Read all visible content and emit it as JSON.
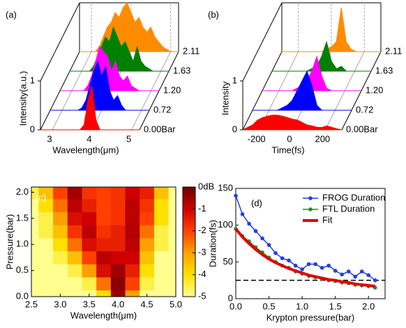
{
  "chart_data": [
    {
      "type": "waterfall",
      "label": "(a)",
      "xlabel": "Wavelength(μm)",
      "ylabel": "Intensity(a.u.)",
      "x": [
        3.0,
        3.1,
        3.2,
        3.3,
        3.4,
        3.5,
        3.6,
        3.7,
        3.8,
        3.9,
        4.0,
        4.1,
        4.2,
        4.3,
        4.4,
        4.5,
        4.6,
        4.7,
        4.8,
        4.9,
        5.0
      ],
      "xlim": [
        2.7,
        5.2
      ],
      "xticks": [
        3,
        4,
        5
      ],
      "zlim": [
        0,
        1
      ],
      "zticks": [
        0,
        1
      ],
      "series": [
        {
          "name": "0.00Bar",
          "color": "#ff0000",
          "values": [
            0,
            0,
            0,
            0,
            0,
            0,
            0,
            0,
            0.1,
            0.6,
            0.9,
            0.2,
            0,
            0,
            0,
            0,
            0,
            0,
            0,
            0,
            0
          ]
        },
        {
          "name": "0.72",
          "color": "#0000ff",
          "values": [
            0,
            0,
            0,
            0,
            0,
            0.05,
            0.2,
            0.5,
            0.8,
            1.0,
            0.7,
            0.9,
            0.4,
            0.2,
            0.3,
            0.1,
            0,
            0,
            0,
            0,
            0
          ]
        },
        {
          "name": "1.20",
          "color": "#ff00ff",
          "values": [
            0,
            0,
            0,
            0,
            0.1,
            0.3,
            0.6,
            0.9,
            0.8,
            0.7,
            0.4,
            0.6,
            0.3,
            0.2,
            0.3,
            0.1,
            0.05,
            0,
            0,
            0,
            0
          ]
        },
        {
          "name": "1.63",
          "color": "#008000",
          "values": [
            0,
            0,
            0,
            0.1,
            0.3,
            0.5,
            0.7,
            0.6,
            0.9,
            0.7,
            0.5,
            0.6,
            0.4,
            0.2,
            0.5,
            0.2,
            0.1,
            0.05,
            0,
            0,
            0
          ]
        },
        {
          "name": "2.11",
          "color": "#ff8c00",
          "values": [
            0,
            0,
            0.1,
            0.3,
            0.5,
            0.6,
            0.8,
            0.7,
            0.9,
            1.0,
            0.8,
            0.6,
            0.7,
            0.5,
            0.4,
            0.5,
            0.3,
            0.2,
            0.1,
            0.05,
            0
          ]
        }
      ]
    },
    {
      "type": "waterfall",
      "label": "(b)",
      "xlabel": "Time(fs)",
      "ylabel": "Intensity",
      "x": [
        -300,
        -270,
        -240,
        -210,
        -180,
        -150,
        -120,
        -90,
        -60,
        -30,
        0,
        30,
        60,
        90,
        120,
        150,
        180,
        210,
        240,
        270,
        300
      ],
      "xlim": [
        -300,
        300
      ],
      "xticks": [
        -200,
        0,
        200
      ],
      "zlim": [
        0,
        1
      ],
      "zticks": [
        0,
        1
      ],
      "series": [
        {
          "name": "0.00Bar",
          "color": "#ff0000",
          "values": [
            0,
            0.05,
            0.1,
            0.2,
            0.25,
            0.28,
            0.3,
            0.3,
            0.28,
            0.25,
            0.22,
            0.2,
            0.15,
            0.1,
            0.08,
            0.05,
            0.05,
            0.08,
            0.05,
            0.02,
            0
          ]
        },
        {
          "name": "0.72",
          "color": "#0000ff",
          "values": [
            0,
            0,
            0,
            0,
            0,
            0,
            0.05,
            0.1,
            0.2,
            0.4,
            0.6,
            0.8,
            0.5,
            0.1,
            0,
            0,
            0,
            0,
            0,
            0,
            0
          ]
        },
        {
          "name": "1.20",
          "color": "#ff00ff",
          "values": [
            0,
            0,
            0,
            0,
            0,
            0,
            0,
            0.05,
            0.1,
            0.2,
            0.4,
            0.7,
            0.3,
            0.05,
            0,
            0,
            0,
            0,
            0,
            0,
            0
          ]
        },
        {
          "name": "1.63",
          "color": "#008000",
          "values": [
            0,
            0,
            0,
            0,
            0,
            0,
            0,
            0,
            0.05,
            0.1,
            0.3,
            0.6,
            0.2,
            0.05,
            0.1,
            0,
            0,
            0,
            0,
            0,
            0
          ]
        },
        {
          "name": "2.11",
          "color": "#ff8c00",
          "values": [
            0,
            0,
            0,
            0,
            0,
            0,
            0,
            0,
            0,
            0.05,
            0.1,
            0.2,
            0.9,
            0.2,
            0.05,
            0,
            0,
            0,
            0,
            0,
            0
          ]
        }
      ]
    },
    {
      "type": "heatmap",
      "label": "(c)",
      "xlabel": "Wavelength(μm)",
      "ylabel": "Pressure(bar)",
      "x": [
        2.5,
        2.75,
        3.0,
        3.25,
        3.5,
        3.75,
        4.0,
        4.25,
        4.5,
        4.75,
        5.0
      ],
      "y": [
        0,
        0.25,
        0.5,
        0.75,
        1.0,
        1.25,
        1.5,
        1.75,
        2.0
      ],
      "z": [
        [
          -5,
          -5,
          -5,
          -5,
          -5,
          -4,
          -0.5,
          -3,
          -5,
          -5,
          -5
        ],
        [
          -5,
          -5,
          -5,
          -5,
          -4.5,
          -2.5,
          -0.3,
          -2,
          -4.5,
          -5,
          -5
        ],
        [
          -5,
          -5,
          -5,
          -4.5,
          -3,
          -1.2,
          -0.5,
          -1.5,
          -4,
          -5,
          -5
        ],
        [
          -5,
          -5,
          -4.5,
          -3.5,
          -2,
          -0.8,
          -1,
          -1,
          -3.5,
          -5,
          -5
        ],
        [
          -5,
          -5,
          -4,
          -2.5,
          -1.2,
          -1.5,
          -1.5,
          -0.8,
          -3,
          -4.5,
          -5
        ],
        [
          -5,
          -4.5,
          -3.5,
          -1.8,
          -0.8,
          -1.8,
          -1.5,
          -0.7,
          -2.5,
          -4.5,
          -5
        ],
        [
          -5,
          -4.5,
          -3,
          -1.2,
          -1,
          -2,
          -1.8,
          -0.8,
          -2,
          -4,
          -5
        ],
        [
          -5,
          -4,
          -2.5,
          -0.8,
          -1.5,
          -2,
          -1.8,
          -0.8,
          -1.8,
          -4,
          -5
        ],
        [
          -4.5,
          -3.5,
          -2,
          -0.5,
          -1.8,
          -2,
          -1.8,
          -1,
          -1.5,
          -3.5,
          -5
        ]
      ],
      "xlim": [
        2.5,
        5.0
      ],
      "ylim": [
        0,
        2.1
      ],
      "xticks": [
        2.5,
        {
          "value": 3,
          "label": "3.0"
        },
        3.5,
        {
          "value": 4,
          "label": "4.0"
        },
        4.5,
        {
          "value": 5,
          "label": "5.0"
        }
      ],
      "yticks": [
        {
          "value": 0,
          "label": "0.0"
        },
        0.5,
        {
          "value": 1,
          "label": "1.0"
        },
        1.5,
        {
          "value": 2,
          "label": "2.0"
        }
      ],
      "zlim": [
        -5,
        0
      ],
      "zticks": [
        {
          "value": 0,
          "label": "0dB"
        },
        -1,
        -2,
        -3,
        -4,
        -5
      ],
      "colormap": [
        "#ffff90",
        "#ffe000",
        "#ffa000",
        "#ff4000",
        "#d00000",
        "#6e0000"
      ]
    },
    {
      "type": "line",
      "label": "(d)",
      "xlabel": "Krypton pressure(bar)",
      "ylabel": "Duration(fs)",
      "x": [
        0,
        0.1,
        0.2,
        0.3,
        0.4,
        0.5,
        0.6,
        0.7,
        0.8,
        0.9,
        1.0,
        1.1,
        1.2,
        1.3,
        1.4,
        1.5,
        1.6,
        1.7,
        1.8,
        1.9,
        2.0,
        2.1
      ],
      "xlim": [
        0,
        2.25
      ],
      "ylim": [
        0,
        150
      ],
      "xticks": [
        {
          "value": 0,
          "label": "0.0"
        },
        0.5,
        {
          "value": 1,
          "label": "1.0"
        },
        1.5,
        {
          "value": 2,
          "label": "2.0"
        }
      ],
      "yticks": [
        0,
        50,
        100,
        150
      ],
      "reference_line": 25,
      "legend": "upper right",
      "series": [
        {
          "name": "FROG Duration",
          "color": "#1f3fe0",
          "markers": true,
          "width": 1.5,
          "values": [
            140,
            115,
            102,
            92,
            82,
            73,
            62,
            55,
            52,
            45,
            40,
            47,
            47,
            42,
            45,
            38,
            33,
            37,
            30,
            37,
            32,
            25
          ]
        },
        {
          "name": "FTL Duration",
          "color": "#2a8a2a",
          "markers": true,
          "width": 1.5,
          "values": [
            95,
            85,
            78,
            70,
            63,
            56,
            50,
            45,
            42,
            37,
            34,
            31,
            29,
            27,
            25,
            24,
            22,
            21,
            19,
            18,
            17,
            15
          ]
        },
        {
          "name": "Fit",
          "color": "#e00000",
          "markers": false,
          "width": 4,
          "values": [
            95,
            84,
            75,
            67,
            60,
            54,
            49,
            45,
            41,
            38,
            35,
            32,
            30,
            28,
            26,
            25,
            23,
            22,
            20,
            19,
            18,
            17
          ]
        }
      ]
    }
  ]
}
